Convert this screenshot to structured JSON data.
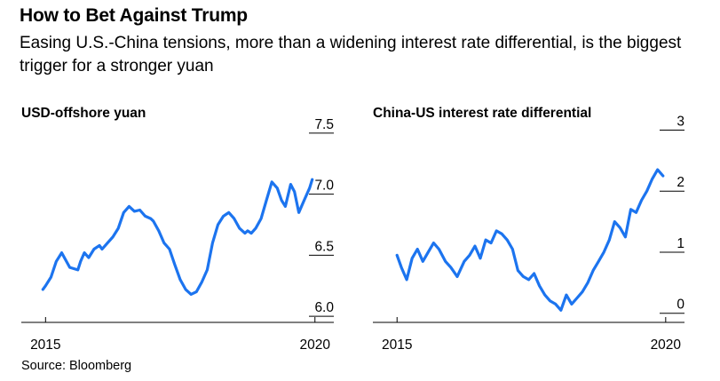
{
  "title": "How to Bet Against Trump",
  "subtitle": "Easing U.S.-China tensions, more than a widening interest rate differential, is the biggest trigger for a stronger yuan",
  "source": "Source: Bloomberg",
  "colors": {
    "line": "#1c74ef",
    "text": "#000000",
    "background": "#ffffff"
  },
  "chart_data": [
    {
      "type": "line",
      "title": "USD-offshore yuan",
      "xlabel": "",
      "ylabel": "",
      "x_tick_labels": [
        "2015",
        "2020"
      ],
      "x_ticks": [
        2015,
        2020
      ],
      "xlim": [
        2014.55,
        2020.35
      ],
      "y_ticks": [
        6.0,
        6.5,
        7.0,
        7.5
      ],
      "y_tick_labels": [
        "6.0",
        "6.5",
        "7.0",
        "7.5"
      ],
      "ylim": [
        5.95,
        7.55
      ],
      "y_axis_side": "right",
      "legend": "none",
      "series": [
        {
          "x": [
            2014.95,
            2015.0,
            2015.1,
            2015.2,
            2015.3,
            2015.45,
            2015.6,
            2015.65,
            2015.72,
            2015.8,
            2015.9,
            2016.0,
            2016.05,
            2016.15,
            2016.25,
            2016.35,
            2016.45,
            2016.55,
            2016.65,
            2016.75,
            2016.85,
            2016.95,
            2017.0,
            2017.1,
            2017.2,
            2017.3,
            2017.4,
            2017.5,
            2017.6,
            2017.7,
            2017.8,
            2017.9,
            2018.0,
            2018.1,
            2018.2,
            2018.3,
            2018.4,
            2018.5,
            2018.6,
            2018.7,
            2018.75,
            2018.82,
            2018.9,
            2019.0,
            2019.1,
            2019.2,
            2019.3,
            2019.38,
            2019.45,
            2019.55,
            2019.62,
            2019.7,
            2019.8,
            2019.9,
            2019.95
          ],
          "y": [
            6.22,
            6.25,
            6.32,
            6.45,
            6.52,
            6.4,
            6.38,
            6.45,
            6.52,
            6.48,
            6.55,
            6.58,
            6.55,
            6.6,
            6.65,
            6.72,
            6.85,
            6.9,
            6.86,
            6.87,
            6.82,
            6.8,
            6.78,
            6.7,
            6.6,
            6.55,
            6.42,
            6.3,
            6.22,
            6.18,
            6.2,
            6.28,
            6.38,
            6.6,
            6.75,
            6.82,
            6.85,
            6.8,
            6.72,
            6.68,
            6.7,
            6.68,
            6.72,
            6.8,
            6.95,
            7.1,
            7.05,
            6.95,
            6.9,
            7.08,
            7.02,
            6.85,
            6.95,
            7.05,
            7.12
          ]
        }
      ]
    },
    {
      "type": "line",
      "title": "China-US interest rate differential",
      "xlabel": "",
      "ylabel": "",
      "x_tick_labels": [
        "2015",
        "2020"
      ],
      "x_ticks": [
        2015,
        2020
      ],
      "xlim": [
        2014.55,
        2020.35
      ],
      "y_ticks": [
        0,
        1,
        2,
        3
      ],
      "y_tick_labels": [
        "0",
        "1",
        "2",
        "3"
      ],
      "ylim": [
        -0.15,
        3.05
      ],
      "y_axis_side": "right",
      "legend": "none",
      "series": [
        {
          "x": [
            2015.0,
            2015.08,
            2015.18,
            2015.28,
            2015.38,
            2015.48,
            2015.58,
            2015.68,
            2015.78,
            2015.9,
            2016.0,
            2016.12,
            2016.25,
            2016.35,
            2016.45,
            2016.55,
            2016.65,
            2016.75,
            2016.85,
            2016.95,
            2017.05,
            2017.15,
            2017.25,
            2017.35,
            2017.45,
            2017.55,
            2017.65,
            2017.75,
            2017.85,
            2017.95,
            2018.05,
            2018.15,
            2018.25,
            2018.35,
            2018.45,
            2018.55,
            2018.65,
            2018.75,
            2018.85,
            2018.95,
            2019.05,
            2019.15,
            2019.25,
            2019.35,
            2019.45,
            2019.55,
            2019.65,
            2019.75,
            2019.85,
            2019.95
          ],
          "y": [
            0.95,
            0.75,
            0.55,
            0.9,
            1.05,
            0.85,
            1.0,
            1.15,
            1.05,
            0.85,
            0.75,
            0.6,
            0.85,
            0.95,
            1.1,
            0.9,
            1.2,
            1.15,
            1.35,
            1.3,
            1.2,
            1.05,
            0.7,
            0.6,
            0.55,
            0.65,
            0.45,
            0.3,
            0.2,
            0.15,
            0.05,
            0.3,
            0.15,
            0.25,
            0.35,
            0.5,
            0.7,
            0.85,
            1.0,
            1.2,
            1.5,
            1.4,
            1.25,
            1.7,
            1.65,
            1.85,
            2.0,
            2.2,
            2.35,
            2.25
          ]
        }
      ]
    }
  ]
}
